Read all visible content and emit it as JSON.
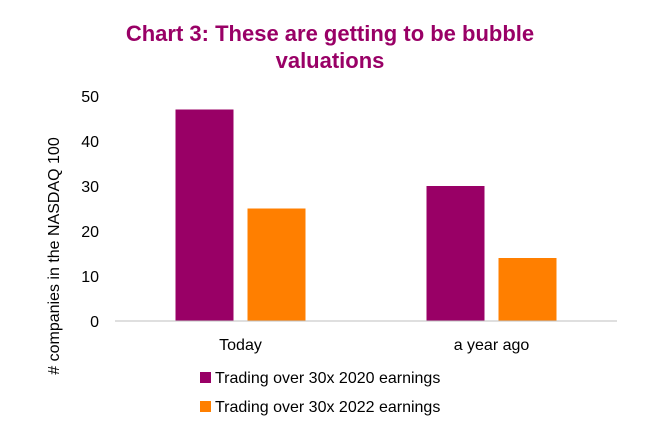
{
  "chart_data": {
    "type": "bar",
    "title_lines": [
      "Chart 3: These are getting to be bubble",
      "valuations"
    ],
    "ylabel": "# companies in the NASDAQ 100",
    "xlabel": "",
    "categories": [
      "Today",
      "a year ago"
    ],
    "series": [
      {
        "name": "Trading over 30x 2020 earnings",
        "values": [
          47,
          30
        ],
        "color": "#990066"
      },
      {
        "name": "Trading over 30x 2022 earnings",
        "values": [
          25,
          14
        ],
        "color": "#FF7F00"
      }
    ],
    "ylim": [
      0,
      50
    ],
    "yticks": [
      0,
      10,
      20,
      30,
      40,
      50
    ],
    "grid": false,
    "legend_position": "bottom"
  },
  "colors": {
    "title": "#990066",
    "axis": "#bfbfbf"
  }
}
